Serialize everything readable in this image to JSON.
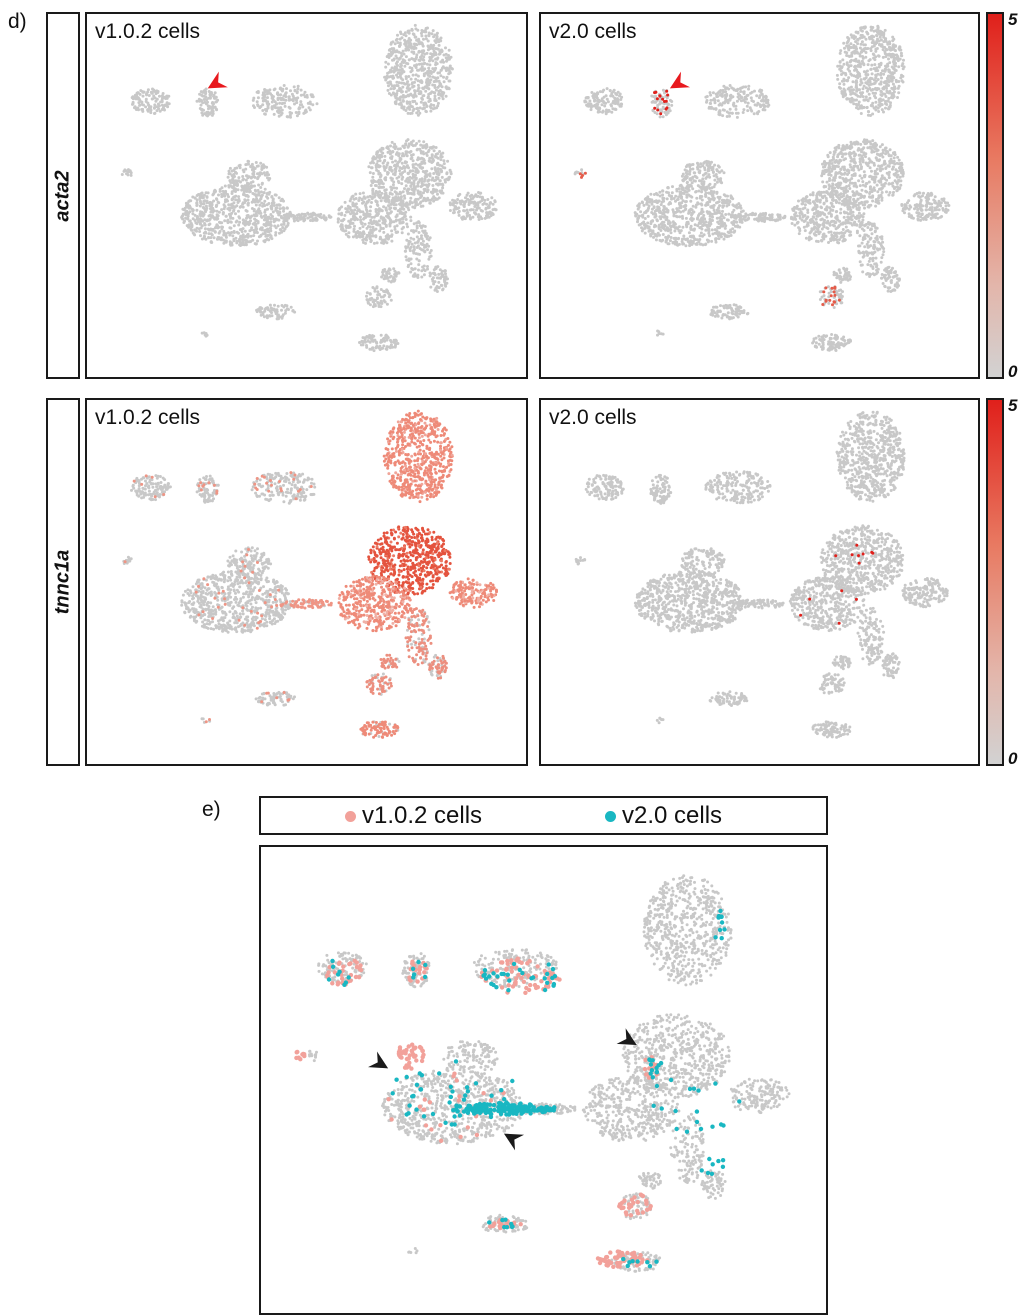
{
  "panel_d_label": "d)",
  "panel_e_label": "e)",
  "genes": [
    "acta2",
    "tnnc1a"
  ],
  "colors": {
    "background_cells": "#c8c8c8",
    "expression_low": "#d2d2d2",
    "expression_high": "#e0201b",
    "v102": "#f2a19a",
    "v20": "#19b7c2",
    "arrow_red": "#e8191e",
    "arrow_black": "#1a1a1a"
  },
  "colorbar": {
    "max_label": "5",
    "min_label": "0"
  },
  "chart_data": [
    {
      "type": "scatter",
      "gene": "acta2",
      "title": "v1.0.2 cells",
      "color_range": [
        0,
        5
      ],
      "expression": "none",
      "annotation": "red arrowhead"
    },
    {
      "type": "scatter",
      "gene": "acta2",
      "title": "v2.0 cells",
      "color_range": [
        0,
        5
      ],
      "expression": "focal",
      "annotation": "red arrowhead"
    },
    {
      "type": "scatter",
      "gene": "tnnc1a",
      "title": "v1.0.2 cells",
      "color_range": [
        0,
        5
      ],
      "expression": "high in right-side clusters"
    },
    {
      "type": "scatter",
      "gene": "tnnc1a",
      "title": "v2.0 cells",
      "color_range": [
        0,
        5
      ],
      "expression": "sparse"
    },
    {
      "type": "scatter",
      "legend": [
        "v1.0.2 cells",
        "v2.0 cells"
      ],
      "legend_placement": "top",
      "annotation": "black arrowheads"
    }
  ]
}
